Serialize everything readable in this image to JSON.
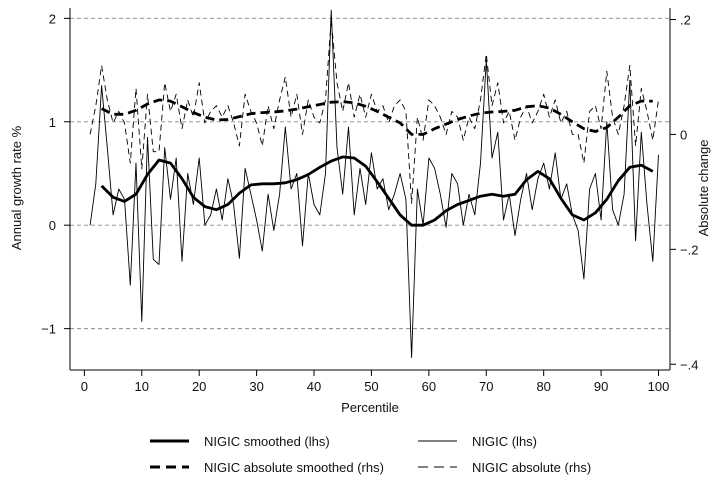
{
  "chart_data": {
    "type": "line",
    "xlabel": "Percentile",
    "ylabel_left": "Annual growth rate %",
    "ylabel_right": "Absolute change",
    "xlim": [
      0,
      100
    ],
    "ylim_left": [
      -1.4,
      2.1
    ],
    "ylim_right": [
      -0.41,
      0.22
    ],
    "x_ticks": [
      0,
      10,
      20,
      30,
      40,
      50,
      60,
      70,
      80,
      90,
      100
    ],
    "y_ticks_left": [
      -1,
      0,
      1,
      2
    ],
    "y_ticks_left_labels": [
      "−1",
      "0",
      "1",
      "2"
    ],
    "y_ticks_right": [
      -0.4,
      -0.2,
      0,
      0.2
    ],
    "y_ticks_right_labels": [
      "−.4",
      "−.2",
      "0",
      ".2"
    ],
    "gridlines_left": [
      -1,
      0,
      1,
      2
    ],
    "grid": true,
    "legend_position": "bottom",
    "series": [
      {
        "name": "NIGIC smoothed (lhs)",
        "axis": "left",
        "style": "thick-solid",
        "x": [
          3,
          5,
          7,
          9,
          11,
          13,
          15,
          17,
          19,
          21,
          23,
          25,
          27,
          29,
          31,
          33,
          35,
          37,
          39,
          41,
          43,
          45,
          47,
          49,
          51,
          53,
          55,
          57,
          59,
          61,
          63,
          65,
          67,
          69,
          71,
          73,
          75,
          77,
          79,
          81,
          83,
          85,
          87,
          89,
          91,
          93,
          95,
          97,
          99
        ],
        "y": [
          0.38,
          0.27,
          0.23,
          0.3,
          0.49,
          0.63,
          0.6,
          0.45,
          0.27,
          0.18,
          0.15,
          0.2,
          0.31,
          0.39,
          0.4,
          0.4,
          0.41,
          0.44,
          0.49,
          0.56,
          0.62,
          0.66,
          0.65,
          0.57,
          0.42,
          0.26,
          0.1,
          0.0,
          0.0,
          0.05,
          0.14,
          0.2,
          0.24,
          0.28,
          0.3,
          0.28,
          0.3,
          0.44,
          0.52,
          0.45,
          0.26,
          0.1,
          0.05,
          0.12,
          0.25,
          0.43,
          0.56,
          0.58,
          0.52
        ]
      },
      {
        "name": "NIGIC (lhs)",
        "axis": "left",
        "style": "thin-solid",
        "x": [
          1,
          2,
          3,
          4,
          5,
          6,
          7,
          8,
          9,
          10,
          11,
          12,
          13,
          14,
          15,
          16,
          17,
          18,
          19,
          20,
          21,
          22,
          23,
          24,
          25,
          26,
          27,
          28,
          29,
          30,
          31,
          32,
          33,
          34,
          35,
          36,
          37,
          38,
          39,
          40,
          41,
          42,
          43,
          44,
          45,
          46,
          47,
          48,
          49,
          50,
          51,
          52,
          53,
          54,
          55,
          56,
          57,
          58,
          59,
          60,
          61,
          62,
          63,
          64,
          65,
          66,
          67,
          68,
          69,
          70,
          71,
          72,
          73,
          74,
          75,
          76,
          77,
          78,
          79,
          80,
          81,
          82,
          83,
          84,
          85,
          86,
          87,
          88,
          89,
          90,
          91,
          92,
          93,
          94,
          95,
          96,
          97,
          98,
          99,
          100
        ],
        "y": [
          0.0,
          0.4,
          1.35,
          0.75,
          0.1,
          0.35,
          0.25,
          -0.58,
          0.6,
          -0.93,
          0.85,
          -0.33,
          -0.38,
          0.75,
          0.25,
          0.65,
          -0.35,
          0.5,
          0.2,
          0.65,
          0.0,
          0.1,
          0.35,
          0.05,
          0.45,
          0.2,
          -0.32,
          0.55,
          0.3,
          0.05,
          -0.25,
          0.3,
          -0.05,
          0.3,
          0.95,
          0.35,
          0.5,
          -0.2,
          0.5,
          0.2,
          0.1,
          0.5,
          2.08,
          0.75,
          0.3,
          0.95,
          0.1,
          0.55,
          0.2,
          0.7,
          0.35,
          0.45,
          0.15,
          0.3,
          0.5,
          0.25,
          -1.28,
          0.35,
          0.0,
          0.65,
          0.55,
          0.3,
          -0.02,
          0.5,
          0.4,
          0.0,
          0.3,
          0.1,
          0.6,
          1.6,
          0.65,
          0.9,
          0.05,
          0.3,
          -0.1,
          0.25,
          0.5,
          0.15,
          0.45,
          0.6,
          0.35,
          0.7,
          0.25,
          0.4,
          0.1,
          -0.05,
          -0.52,
          0.35,
          0.5,
          0.05,
          1.0,
          0.15,
          0.0,
          0.3,
          1.4,
          -0.15,
          0.9,
          0.2,
          -0.35,
          0.68
        ]
      },
      {
        "name": "NIGIC absolute smoothed (rhs)",
        "axis": "right",
        "style": "thick-dashed",
        "x": [
          3,
          5,
          7,
          9,
          11,
          13,
          15,
          17,
          19,
          21,
          23,
          25,
          27,
          29,
          31,
          33,
          35,
          37,
          39,
          41,
          43,
          45,
          47,
          49,
          51,
          53,
          55,
          57,
          59,
          61,
          63,
          65,
          67,
          69,
          71,
          73,
          75,
          77,
          79,
          81,
          83,
          85,
          87,
          89,
          91,
          93,
          95,
          97,
          99
        ],
        "y": [
          0.045,
          0.035,
          0.035,
          0.042,
          0.053,
          0.06,
          0.058,
          0.048,
          0.038,
          0.03,
          0.025,
          0.026,
          0.031,
          0.036,
          0.038,
          0.039,
          0.041,
          0.044,
          0.048,
          0.052,
          0.056,
          0.057,
          0.055,
          0.049,
          0.04,
          0.03,
          0.02,
          0.0,
          0.0,
          0.01,
          0.018,
          0.026,
          0.032,
          0.037,
          0.039,
          0.04,
          0.042,
          0.048,
          0.05,
          0.046,
          0.035,
          0.022,
          0.01,
          0.005,
          0.012,
          0.03,
          0.05,
          0.058,
          0.058
        ]
      },
      {
        "name": "NIGIC absolute (rhs)",
        "axis": "right",
        "style": "thin-dashed",
        "x": [
          1,
          2,
          3,
          4,
          5,
          6,
          7,
          8,
          9,
          10,
          11,
          12,
          13,
          14,
          15,
          16,
          17,
          18,
          19,
          20,
          21,
          22,
          23,
          24,
          25,
          26,
          27,
          28,
          29,
          30,
          31,
          32,
          33,
          34,
          35,
          36,
          37,
          38,
          39,
          40,
          41,
          42,
          43,
          44,
          45,
          46,
          47,
          48,
          49,
          50,
          51,
          52,
          53,
          54,
          55,
          56,
          57,
          58,
          59,
          60,
          61,
          62,
          63,
          64,
          65,
          66,
          67,
          68,
          69,
          70,
          71,
          72,
          73,
          74,
          75,
          76,
          77,
          78,
          79,
          80,
          81,
          82,
          83,
          84,
          85,
          86,
          87,
          88,
          89,
          90,
          91,
          92,
          93,
          94,
          95,
          96,
          97,
          98,
          99,
          100
        ],
        "y": [
          0.0,
          0.05,
          0.12,
          0.06,
          0.02,
          0.04,
          0.02,
          -0.05,
          0.08,
          -0.06,
          0.07,
          -0.03,
          -0.03,
          0.09,
          0.04,
          0.07,
          0.01,
          0.06,
          0.03,
          0.09,
          0.02,
          0.04,
          0.05,
          0.03,
          0.05,
          0.02,
          -0.02,
          0.07,
          0.04,
          0.02,
          -0.02,
          0.05,
          0.01,
          0.06,
          0.1,
          0.03,
          0.07,
          0.0,
          0.06,
          0.03,
          0.02,
          0.06,
          0.2,
          0.09,
          0.04,
          0.09,
          0.03,
          0.07,
          0.03,
          0.07,
          0.04,
          0.05,
          0.02,
          0.05,
          0.06,
          0.04,
          -0.12,
          0.03,
          -0.01,
          0.06,
          0.05,
          0.03,
          0.0,
          0.04,
          0.03,
          -0.01,
          0.03,
          0.01,
          0.06,
          0.14,
          0.05,
          0.09,
          0.02,
          0.04,
          -0.01,
          0.03,
          0.05,
          0.02,
          0.04,
          0.07,
          0.03,
          0.06,
          0.02,
          0.04,
          0.0,
          0.0,
          -0.05,
          0.04,
          0.05,
          0.01,
          0.11,
          0.03,
          0.0,
          0.05,
          0.12,
          -0.02,
          0.08,
          0.04,
          -0.01,
          0.06
        ]
      }
    ],
    "legend": {
      "entries": [
        {
          "label": "NIGIC smoothed (lhs)",
          "style": "thick-solid"
        },
        {
          "label": "NIGIC (lhs)",
          "style": "thin-solid"
        },
        {
          "label": "NIGIC absolute smoothed (rhs)",
          "style": "thick-dashed"
        },
        {
          "label": "NIGIC absolute (rhs)",
          "style": "thin-dashed"
        }
      ]
    }
  }
}
